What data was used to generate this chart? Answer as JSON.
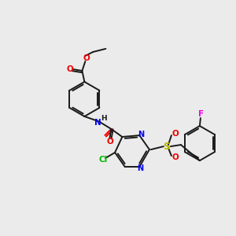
{
  "background_color": "#ebebeb",
  "bond_color": "#1a1a1a",
  "atom_colors": {
    "N": "#0000ee",
    "O": "#ee0000",
    "S": "#bbbb00",
    "Cl": "#00bb00",
    "F": "#ee00ee",
    "C": "#1a1a1a",
    "H": "#1a1a1a"
  },
  "figsize": [
    3.0,
    3.0
  ],
  "dpi": 100
}
